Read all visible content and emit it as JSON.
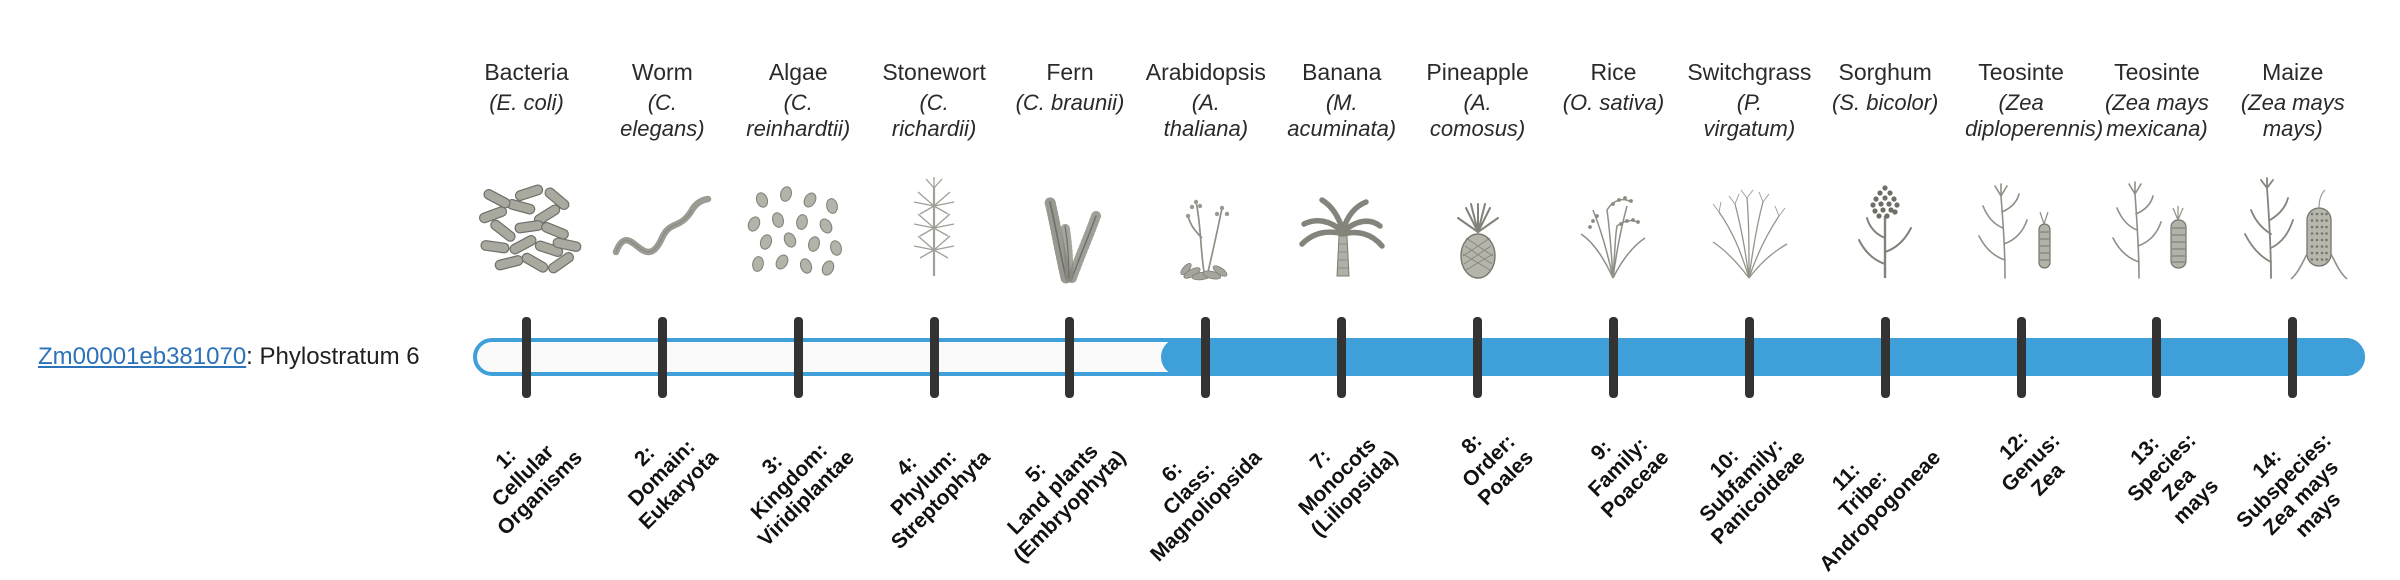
{
  "gene": {
    "link_text": "Zm00001eb381070",
    "suffix_text": ": Phylostratum 6"
  },
  "colors": {
    "bar_fill": "#3f9fd8",
    "track_background": "#fafafa",
    "track_border": "#3f9fd8",
    "tick": "#333333",
    "link": "#2b72b8",
    "text": "#262626"
  },
  "timeline": {
    "filled_from_stratum": 6,
    "strata": [
      {
        "num": 1,
        "name": "Bacteria",
        "species": "(E. coli)",
        "icon": "bacteria-icon",
        "tick_label": "1:\nCellular\nOrganisms"
      },
      {
        "num": 2,
        "name": "Worm",
        "species": "(C. elegans)",
        "icon": "worm-icon",
        "tick_label": "2:\nDomain:\nEukaryota"
      },
      {
        "num": 3,
        "name": "Algae",
        "species": "(C. reinhardtii)",
        "icon": "algae-icon",
        "tick_label": "3:\nKingdom:\nViridiplantae"
      },
      {
        "num": 4,
        "name": "Stonewort",
        "species": "(C. richardii)",
        "icon": "stonewort-icon",
        "tick_label": "4:\nPhylum:\nStreptophyta"
      },
      {
        "num": 5,
        "name": "Fern",
        "species": "(C. braunii)",
        "icon": "fern-icon",
        "tick_label": "5:\nLand plants\n(Embryophyta)"
      },
      {
        "num": 6,
        "name": "Arabidopsis",
        "species": "(A. thaliana)",
        "icon": "arabidopsis-icon",
        "tick_label": "6:\nClass:\nMagnoliopsida"
      },
      {
        "num": 7,
        "name": "Banana",
        "species": "(M. acuminata)",
        "icon": "banana-icon",
        "tick_label": "7:\nMonocots\n(Liliopsida)"
      },
      {
        "num": 8,
        "name": "Pineapple",
        "species": "(A. comosus)",
        "icon": "pineapple-icon",
        "tick_label": "8:\nOrder:\nPoales"
      },
      {
        "num": 9,
        "name": "Rice",
        "species": "(O. sativa)",
        "icon": "rice-icon",
        "tick_label": "9:\nFamily:\nPoaceae"
      },
      {
        "num": 10,
        "name": "Switchgrass",
        "species": "(P. virgatum)",
        "icon": "switchgrass-icon",
        "tick_label": "10:\nSubfamily:\nPanicoideae"
      },
      {
        "num": 11,
        "name": "Sorghum",
        "species": "(S. bicolor)",
        "icon": "sorghum-icon",
        "tick_label": "11:\nTribe:\nAndropogoneae"
      },
      {
        "num": 12,
        "name": "Teosinte",
        "species": "(Zea diploperennis)",
        "icon": "teosinte-diploperennis-icon",
        "tick_label": "12:\nGenus:\nZea"
      },
      {
        "num": 13,
        "name": "Teosinte",
        "species": "(Zea mays mexicana)",
        "icon": "teosinte-mexicana-icon",
        "tick_label": "13:\nSpecies:\nZea\nmays"
      },
      {
        "num": 14,
        "name": "Maize",
        "species": "(Zea mays mays)",
        "icon": "maize-icon",
        "tick_label": "14:\nSubspecies:\nZea mays\nmays"
      }
    ]
  }
}
